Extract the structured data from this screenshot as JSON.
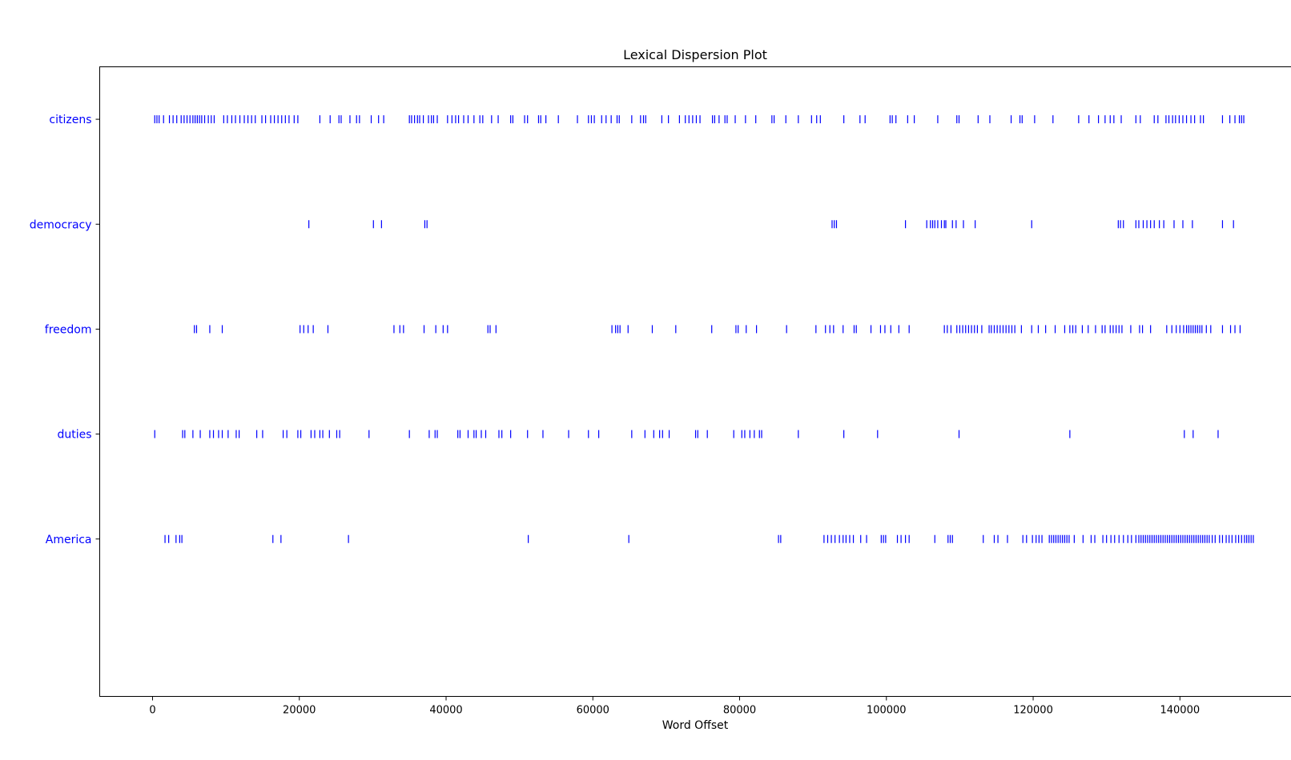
{
  "chart_data": {
    "type": "scatter",
    "title": "Lexical Dispersion Plot",
    "xlabel": "Word Offset",
    "ylabel": "",
    "xlim": [
      -7200,
      156500
    ],
    "ylim": [
      -0.5,
      5.5
    ],
    "xticks": [
      0,
      20000,
      40000,
      60000,
      80000,
      100000,
      120000,
      140000
    ],
    "xtick_labels": [
      "0",
      "20000",
      "40000",
      "60000",
      "80000",
      "100000",
      "120000",
      "140000"
    ],
    "marker": "|",
    "marker_color": "#0000ff",
    "label_color": "#0000ff",
    "grid": false,
    "words": [
      "citizens",
      "democracy",
      "freedom",
      "duties",
      "America"
    ],
    "series": [
      {
        "name": "citizens",
        "x": [
          300,
          600,
          900,
          1500,
          2300,
          2800,
          3300,
          3900,
          4300,
          4700,
          5100,
          5500,
          5800,
          6100,
          6400,
          6700,
          7100,
          7600,
          8000,
          8400,
          9700,
          10200,
          10800,
          11300,
          11900,
          12500,
          13000,
          13500,
          14000,
          14900,
          15400,
          16100,
          16600,
          17100,
          17600,
          18100,
          18600,
          19300,
          19800,
          22800,
          24200,
          25400,
          25700,
          26900,
          27800,
          28200,
          29800,
          30800,
          31500,
          35000,
          35300,
          35700,
          36100,
          36400,
          36900,
          37600,
          38000,
          38300,
          38800,
          40200,
          40800,
          41300,
          41700,
          42400,
          43000,
          43800,
          44600,
          45000,
          46200,
          47100,
          48800,
          49100,
          50700,
          51100,
          52600,
          52900,
          53600,
          55300,
          57900,
          59400,
          59800,
          60200,
          61200,
          61800,
          62500,
          63300,
          63600,
          65300,
          66500,
          66900,
          67200,
          69400,
          70300,
          71800,
          72600,
          73100,
          73600,
          74100,
          74600,
          76300,
          76600,
          77200,
          78000,
          78300,
          79400,
          80800,
          82200,
          84400,
          84700,
          86300,
          88000,
          89800,
          90500,
          91000,
          94200,
          96400,
          97100,
          100500,
          100800,
          101300,
          102900,
          103800,
          107000,
          109600,
          109900,
          112500,
          114100,
          117000,
          118200,
          118500,
          120200,
          122700,
          126200,
          127600,
          128900,
          129800,
          130500,
          131000,
          132000,
          134000,
          134600,
          136500,
          137000,
          138100,
          138500,
          139000,
          139400,
          139900,
          140400,
          140900,
          141500,
          142000,
          142800,
          143200,
          145800,
          146800,
          147500,
          148100,
          148400,
          148700
        ]
      },
      {
        "name": "democracy",
        "x": [
          21300,
          30100,
          31200,
          37100,
          37400,
          92600,
          92900,
          93200,
          102600,
          105500,
          106000,
          106300,
          106600,
          107000,
          107500,
          107900,
          108100,
          109000,
          109500,
          110500,
          112100,
          119800,
          131600,
          131900,
          132300,
          134000,
          134400,
          135000,
          135500,
          136000,
          136500,
          137200,
          137800,
          139200,
          140400,
          141700,
          145800,
          147300
        ]
      },
      {
        "name": "freedom",
        "x": [
          5700,
          6000,
          7800,
          9500,
          20100,
          20600,
          21200,
          21900,
          23900,
          32900,
          33700,
          34200,
          37000,
          38600,
          39600,
          40200,
          45700,
          46000,
          46800,
          62600,
          63100,
          63400,
          63700,
          64800,
          68100,
          71300,
          76200,
          79500,
          79800,
          80900,
          82300,
          86400,
          90400,
          91700,
          92300,
          92800,
          94100,
          95600,
          95900,
          97900,
          99200,
          99800,
          100600,
          101700,
          103100,
          107900,
          108300,
          108800,
          109600,
          110000,
          110400,
          110800,
          111200,
          111600,
          112000,
          112400,
          113000,
          114000,
          114300,
          114700,
          115100,
          115500,
          115900,
          116300,
          116700,
          117100,
          117500,
          118400,
          119800,
          120700,
          121700,
          123000,
          124300,
          125000,
          125400,
          125800,
          126700,
          127500,
          128500,
          129400,
          129800,
          130500,
          130900,
          131300,
          131700,
          132100,
          133300,
          134500,
          134900,
          136000,
          138200,
          138900,
          139500,
          140000,
          140500,
          140900,
          141200,
          141500,
          141800,
          142100,
          142400,
          142700,
          143000,
          143600,
          144200,
          145800,
          146900,
          147500,
          148200
        ]
      },
      {
        "name": "duties",
        "x": [
          300,
          4100,
          4400,
          5500,
          6500,
          7800,
          8300,
          9000,
          9500,
          10300,
          11400,
          11800,
          14200,
          15000,
          17800,
          18300,
          19800,
          20200,
          21600,
          22100,
          22800,
          23200,
          24100,
          25100,
          25500,
          29500,
          35000,
          37700,
          38500,
          38800,
          41600,
          41900,
          43000,
          43800,
          44100,
          44800,
          45400,
          47200,
          47600,
          48800,
          51100,
          53200,
          56700,
          59400,
          60800,
          65300,
          67100,
          68300,
          69100,
          69500,
          70400,
          74000,
          74300,
          75600,
          79200,
          80300,
          80700,
          81400,
          82000,
          82700,
          83000,
          88000,
          94200,
          98800,
          109900,
          125000,
          140600,
          141800,
          145200
        ]
      },
      {
        "name": "America",
        "x": [
          1700,
          2200,
          3200,
          3700,
          4000,
          16400,
          17500,
          26700,
          51200,
          64900,
          85300,
          85600,
          91500,
          92000,
          92500,
          93000,
          93600,
          94100,
          94500,
          95000,
          95500,
          96500,
          97300,
          99300,
          99600,
          99900,
          101500,
          102000,
          102600,
          103100,
          106600,
          108400,
          108700,
          109000,
          113200,
          114700,
          115200,
          116500,
          118600,
          119100,
          119900,
          120400,
          120800,
          121200,
          122200,
          122500,
          122800,
          123100,
          123400,
          123700,
          124000,
          124300,
          124600,
          124900,
          125600,
          126800,
          127900,
          128400,
          129500,
          130000,
          130600,
          131100,
          131700,
          132300,
          132900,
          133400,
          134000,
          134400,
          134700,
          135000,
          135300,
          135600,
          135900,
          136200,
          136500,
          136800,
          137100,
          137400,
          137700,
          138000,
          138300,
          138600,
          138900,
          139200,
          139500,
          139800,
          140100,
          140400,
          140700,
          141000,
          141300,
          141600,
          141900,
          142200,
          142500,
          142800,
          143100,
          143400,
          143700,
          144000,
          144400,
          144800,
          145400,
          145800,
          146300,
          146700,
          147100,
          147600,
          148000,
          148400,
          148800,
          149100,
          149400,
          149700,
          150000
        ]
      }
    ]
  }
}
